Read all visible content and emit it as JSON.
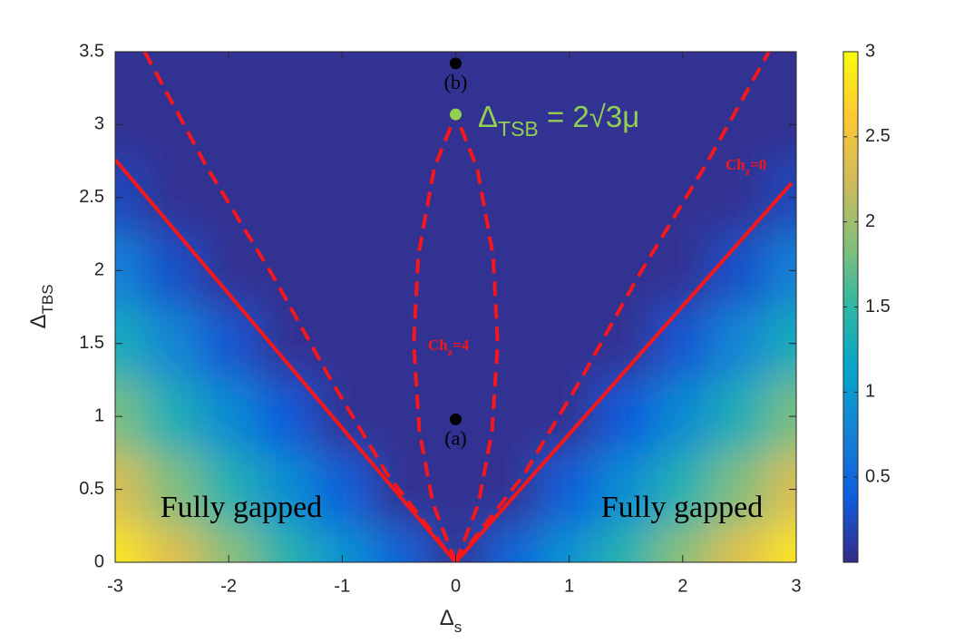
{
  "chart_data": {
    "type": "heatmap",
    "xlabel": {
      "text": "Δ",
      "subscript": "s"
    },
    "ylabel": {
      "text": "Δ",
      "subscript": "TBS"
    },
    "xlim": [
      -3,
      3
    ],
    "xticks": [
      -3,
      -2,
      -1,
      0,
      1,
      2,
      3
    ],
    "ylim": [
      0,
      3.5
    ],
    "yticks": [
      0,
      0.5,
      1,
      1.5,
      2,
      2.5,
      3,
      3.5
    ],
    "clim": [
      0,
      3
    ],
    "cticks": [
      0.5,
      1,
      1.5,
      2,
      2.5,
      3
    ],
    "colormap": [
      "#352a87",
      "#0f5cdd",
      "#1481d6",
      "#06a4ca",
      "#2eb7a4",
      "#87bf77",
      "#d1bb59",
      "#fec832",
      "#f9fb0e"
    ],
    "heatmap": {
      "x": [
        -3,
        -2.5,
        -2,
        -1.5,
        -1,
        -0.5,
        0,
        0.5,
        1,
        1.5,
        2,
        2.5,
        3
      ],
      "y": [
        0,
        0.5,
        1,
        1.5,
        2,
        2.5,
        3,
        3.5
      ],
      "z": [
        [
          2.85,
          2.38,
          1.9,
          1.43,
          0.95,
          0.48,
          0.05,
          0.48,
          0.95,
          1.43,
          1.9,
          2.38,
          2.85
        ],
        [
          2.33,
          1.85,
          1.38,
          0.9,
          0.43,
          0.05,
          0.05,
          0.05,
          0.43,
          0.9,
          1.38,
          1.85,
          2.33
        ],
        [
          1.81,
          1.33,
          0.86,
          0.38,
          0.05,
          0.05,
          0.05,
          0.05,
          0.05,
          0.38,
          0.86,
          1.33,
          1.81
        ],
        [
          1.28,
          0.81,
          0.33,
          0.05,
          0.05,
          0.05,
          0.05,
          0.05,
          0.05,
          0.05,
          0.33,
          0.81,
          1.28
        ],
        [
          0.76,
          0.29,
          0.05,
          0.05,
          0.05,
          0.05,
          0.05,
          0.05,
          0.05,
          0.05,
          0.05,
          0.29,
          0.76
        ],
        [
          0.24,
          0.05,
          0.05,
          0.05,
          0.05,
          0.05,
          0.05,
          0.05,
          0.05,
          0.05,
          0.05,
          0.05,
          0.24
        ],
        [
          0.05,
          0.05,
          0.05,
          0.05,
          0.05,
          0.05,
          0.05,
          0.05,
          0.05,
          0.05,
          0.05,
          0.05,
          0.05
        ],
        [
          0.05,
          0.05,
          0.05,
          0.05,
          0.05,
          0.05,
          0.05,
          0.05,
          0.05,
          0.05,
          0.05,
          0.05,
          0.05
        ]
      ]
    },
    "curves": [
      {
        "style": "solid",
        "color": "#f5171b",
        "x": [
          -3,
          0
        ],
        "y": [
          2.76,
          0
        ]
      },
      {
        "style": "solid",
        "color": "#f5171b",
        "x": [
          0,
          2.96
        ],
        "y": [
          0,
          2.6
        ]
      },
      {
        "style": "dashed",
        "color": "#f5171b",
        "x": [
          -2.74,
          -2.2,
          -1.6,
          -1.1,
          -0.6,
          0
        ],
        "y": [
          3.5,
          2.72,
          1.95,
          1.25,
          0.6,
          0
        ]
      },
      {
        "style": "dashed",
        "color": "#f5171b",
        "x": [
          0,
          0.6,
          1.1,
          1.6,
          2.2,
          2.76
        ],
        "y": [
          0,
          0.6,
          1.25,
          1.95,
          2.72,
          3.5
        ]
      },
      {
        "style": "dashed",
        "color": "#f5171b",
        "x": [
          0,
          0.2,
          0.32,
          0.37,
          0.33,
          0.19,
          0
        ],
        "y": [
          0,
          0.4,
          0.9,
          1.5,
          2.1,
          2.7,
          3.07
        ]
      },
      {
        "style": "dashed",
        "color": "#f5171b",
        "x": [
          0,
          -0.2,
          -0.32,
          -0.37,
          -0.33,
          -0.19,
          0
        ],
        "y": [
          0,
          0.4,
          0.9,
          1.5,
          2.1,
          2.7,
          3.07
        ]
      }
    ],
    "points": [
      {
        "x": 0,
        "y": 3.42,
        "color": "#000000",
        "label": "(b)"
      },
      {
        "x": 0,
        "y": 0.98,
        "color": "#000000",
        "label": "(a)"
      },
      {
        "x": 0,
        "y": 3.07,
        "color": "#92d050"
      }
    ],
    "annotations": [
      {
        "color": "#92d050",
        "parts": [
          {
            "text": "Δ"
          },
          {
            "text": "TSB",
            "sub": true
          },
          {
            "text": " = 2√3μ"
          }
        ]
      },
      {
        "color": "#f5171b",
        "parts": [
          {
            "text": "Ch"
          },
          {
            "text": "z",
            "sub": true
          },
          {
            "text": "=0"
          }
        ]
      },
      {
        "color": "#f5171b",
        "parts": [
          {
            "text": "Ch"
          },
          {
            "text": "z",
            "sub": true
          },
          {
            "text": "=4"
          }
        ]
      },
      {
        "color": "#000000",
        "parts": [
          {
            "text": "Fully gapped"
          }
        ]
      },
      {
        "color": "#000000",
        "parts": [
          {
            "text": "Fully gapped"
          }
        ]
      }
    ]
  }
}
